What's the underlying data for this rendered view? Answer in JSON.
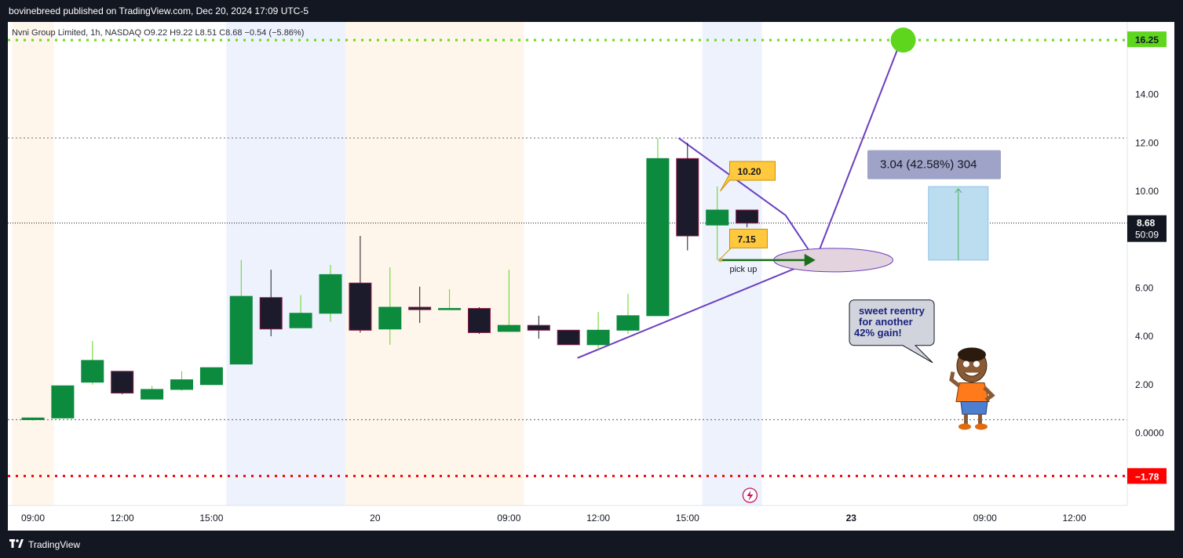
{
  "header": {
    "published_by": "bovinebreed published on TradingView.com, Dec 20, 2024 17:09 UTC-5"
  },
  "footer": {
    "brand": "TradingView",
    "logo_icon": "tradingview-logo-icon"
  },
  "colors": {
    "bull": "#089981",
    "bull_fill": "#0c8a3e",
    "bear_fill": "#1b1b2b",
    "bear_wick": "#1b1b2b",
    "green_line": "#66dd1a",
    "red_line": "#ff0000",
    "purple_line": "#6a3fbe",
    "label_yellow": "#ffc83d",
    "measure_fill": "#bcdcf0",
    "measure_label_bg": "#9fa3c7"
  },
  "chart_data": {
    "type": "candlestick",
    "symbol_line": "Nvni Group Limited, 1h, NASDAQ  O9.22  H9.22  L8.51  C8.68  −0.54 (−5.86%)",
    "ylim": [
      -3.0,
      17.0
    ],
    "y_ticks": [
      "14.00",
      "12.00",
      "10.00",
      "6.00",
      "4.00",
      "2.00",
      "0.0000"
    ],
    "y_tick_values": [
      14,
      12,
      10,
      6,
      4,
      2,
      0
    ],
    "x_ticks": [
      "09:00",
      "12:00",
      "15:00",
      "20",
      "09:00",
      "12:00",
      "15:00",
      "23",
      "09:00",
      "12:00"
    ],
    "x_tick_bars": [
      0,
      3,
      6,
      11.5,
      16,
      19,
      22,
      27.5,
      32,
      35
    ],
    "x_tick_bold": [
      false,
      false,
      false,
      false,
      false,
      false,
      false,
      true,
      false,
      false
    ],
    "bar_count_visible": 38,
    "candles": [
      {
        "o": 0.55,
        "h": 0.62,
        "l": 0.5,
        "c": 0.62
      },
      {
        "o": 0.62,
        "h": 1.95,
        "l": 0.6,
        "c": 1.95
      },
      {
        "o": 2.1,
        "h": 3.8,
        "l": 2.0,
        "c": 3.0
      },
      {
        "o": 2.55,
        "h": 2.55,
        "l": 1.6,
        "c": 1.65
      },
      {
        "o": 1.4,
        "h": 1.95,
        "l": 1.4,
        "c": 1.8
      },
      {
        "o": 1.8,
        "h": 2.55,
        "l": 1.75,
        "c": 2.2
      },
      {
        "o": 2.0,
        "h": 2.7,
        "l": 2.0,
        "c": 2.7
      },
      {
        "o": 2.85,
        "h": 7.15,
        "l": 2.85,
        "c": 5.65
      },
      {
        "o": 5.6,
        "h": 6.75,
        "l": 4.0,
        "c": 4.3
      },
      {
        "o": 4.35,
        "h": 5.7,
        "l": 4.35,
        "c": 4.95
      },
      {
        "o": 4.95,
        "h": 6.95,
        "l": 4.6,
        "c": 6.55
      },
      {
        "o": 6.2,
        "h": 8.15,
        "l": 4.15,
        "c": 4.25
      },
      {
        "o": 4.3,
        "h": 6.85,
        "l": 3.65,
        "c": 5.2
      },
      {
        "o": 5.2,
        "h": 6.05,
        "l": 4.55,
        "c": 5.1
      },
      {
        "o": 5.1,
        "h": 5.95,
        "l": 5.1,
        "c": 5.15
      },
      {
        "o": 5.15,
        "h": 5.2,
        "l": 4.1,
        "c": 4.15
      },
      {
        "o": 4.2,
        "h": 6.75,
        "l": 4.2,
        "c": 4.45
      },
      {
        "o": 4.45,
        "h": 4.85,
        "l": 3.9,
        "c": 4.25
      },
      {
        "o": 4.25,
        "h": 4.25,
        "l": 3.65,
        "c": 3.65
      },
      {
        "o": 3.65,
        "h": 5.0,
        "l": 3.45,
        "c": 4.25
      },
      {
        "o": 4.25,
        "h": 5.75,
        "l": 4.1,
        "c": 4.85
      },
      {
        "o": 4.85,
        "h": 12.2,
        "l": 4.85,
        "c": 11.35
      },
      {
        "o": 11.35,
        "h": 12.0,
        "l": 7.55,
        "c": 8.15
      },
      {
        "o": 8.6,
        "h": 10.2,
        "l": 7.15,
        "c": 9.22
      },
      {
        "o": 9.22,
        "h": 9.22,
        "l": 8.51,
        "c": 8.68
      }
    ],
    "last_price": "8.68",
    "countdown": "50:09",
    "green_level": "16.25",
    "green_level_value": 16.25,
    "red_level": "−1.78",
    "red_level_value": -1.78,
    "dotted_levels": [
      12.2,
      0.55
    ],
    "price_line_value": 8.68,
    "annotations": {
      "high_label": "10.20",
      "low_label": "7.15",
      "pick_up": "pick up",
      "measure": "3.04 (42.58%) 304",
      "note": [
        "sweet reentry",
        "for another",
        "42% gain!"
      ]
    },
    "sessions": [
      {
        "from": -0.7,
        "to": 0.7,
        "type": "pre"
      },
      {
        "from": 6.5,
        "to": 10.5,
        "type": "ext"
      },
      {
        "from": 10.5,
        "to": 16.5,
        "type": "pre"
      },
      {
        "from": 22.5,
        "to": 24.5,
        "type": "ext"
      }
    ]
  }
}
